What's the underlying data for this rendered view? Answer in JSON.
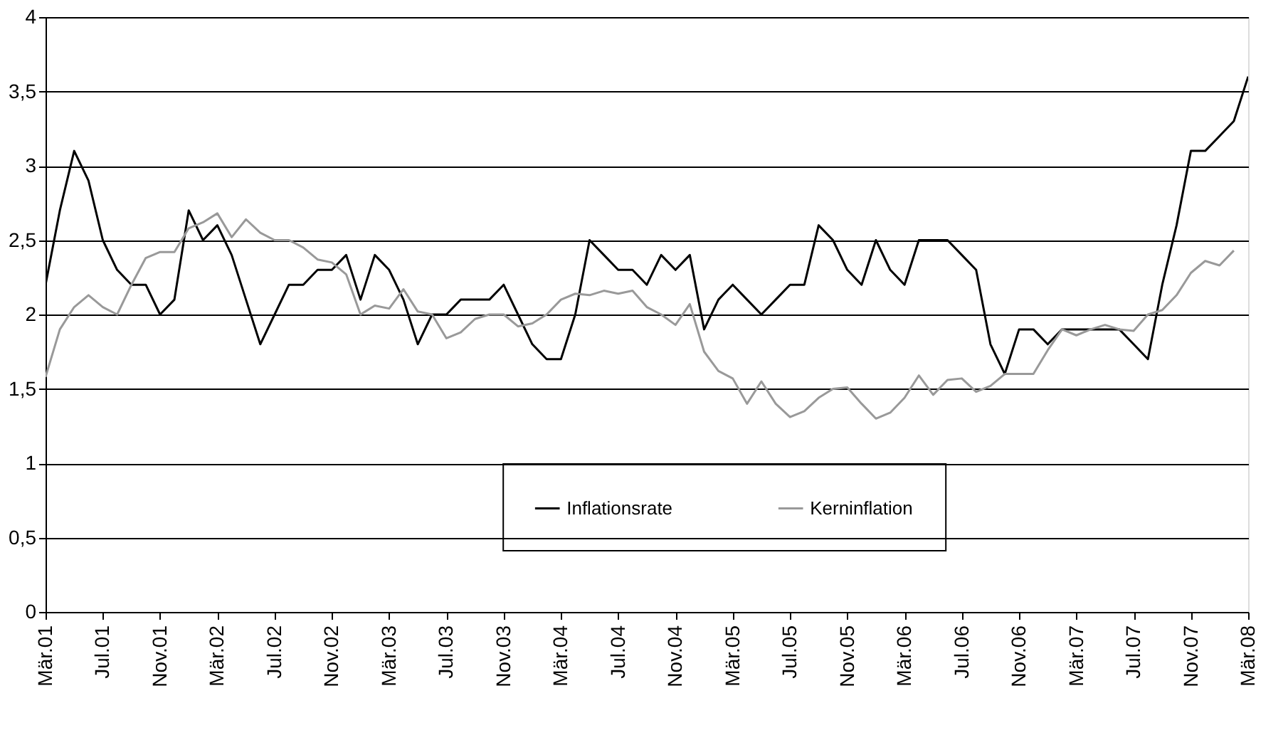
{
  "chart_data": {
    "type": "line",
    "categories": [
      "Mär.01",
      null,
      null,
      null,
      "Jul.01",
      null,
      null,
      null,
      "Nov.01",
      null,
      null,
      null,
      "Mär.02",
      null,
      null,
      null,
      "Jul.02",
      null,
      null,
      null,
      "Nov.02",
      null,
      null,
      null,
      "Mär.03",
      null,
      null,
      null,
      "Jul.03",
      null,
      null,
      null,
      "Nov.03",
      null,
      null,
      null,
      "Mär.04",
      null,
      null,
      null,
      "Jul.04",
      null,
      null,
      null,
      "Nov.04",
      null,
      null,
      null,
      "Mär.05",
      null,
      null,
      null,
      "Jul.05",
      null,
      null,
      null,
      "Nov.05",
      null,
      null,
      null,
      "Mär.06",
      null,
      null,
      null,
      "Jul.06",
      null,
      null,
      null,
      "Nov.06",
      null,
      null,
      null,
      "Mär.07",
      null,
      null,
      null,
      "Jul.07",
      null,
      null,
      null,
      "Nov.07",
      null,
      null,
      null,
      "Mär.08"
    ],
    "series": [
      {
        "name": "Inflationsrate",
        "color": "#000000",
        "values": [
          2.2,
          2.7,
          3.1,
          2.9,
          2.5,
          2.3,
          2.2,
          2.2,
          2.0,
          2.1,
          2.7,
          2.5,
          2.6,
          2.4,
          2.1,
          1.8,
          2.0,
          2.2,
          2.2,
          2.3,
          2.3,
          2.4,
          2.1,
          2.4,
          2.3,
          2.1,
          1.8,
          2.0,
          2.0,
          2.1,
          2.1,
          2.1,
          2.2,
          2.0,
          1.8,
          1.7,
          1.7,
          2.0,
          2.5,
          2.4,
          2.3,
          2.3,
          2.2,
          2.4,
          2.3,
          2.4,
          1.9,
          2.1,
          2.2,
          2.1,
          2.0,
          2.1,
          2.2,
          2.2,
          2.6,
          2.5,
          2.3,
          2.2,
          2.5,
          2.3,
          2.2,
          2.5,
          2.5,
          2.5,
          2.4,
          2.3,
          1.8,
          1.6,
          1.9,
          1.9,
          1.8,
          1.9,
          1.9,
          1.9,
          1.9,
          1.9,
          1.8,
          1.7,
          2.2,
          2.6,
          3.1,
          3.1,
          3.2,
          3.3,
          3.6
        ]
      },
      {
        "name": "Kerninflation",
        "color": "#999999",
        "values": [
          1.58,
          1.9,
          2.05,
          2.13,
          2.05,
          2.0,
          2.2,
          2.38,
          2.42,
          2.42,
          2.58,
          2.62,
          2.68,
          2.52,
          2.64,
          2.55,
          2.5,
          2.5,
          2.45,
          2.37,
          2.35,
          2.27,
          2.0,
          2.06,
          2.04,
          2.17,
          2.02,
          2.0,
          1.84,
          1.88,
          1.97,
          2.0,
          2.0,
          1.92,
          1.94,
          2.0,
          2.1,
          2.14,
          2.13,
          2.16,
          2.14,
          2.16,
          2.05,
          2.0,
          1.93,
          2.07,
          1.75,
          1.62,
          1.57,
          1.4,
          1.55,
          1.4,
          1.31,
          1.35,
          1.44,
          1.5,
          1.51,
          1.4,
          1.3,
          1.34,
          1.44,
          1.59,
          1.46,
          1.56,
          1.57,
          1.48,
          1.52,
          1.6,
          1.6,
          1.6,
          1.76,
          1.9,
          1.86,
          1.9,
          1.93,
          1.9,
          1.89,
          2.0,
          2.03,
          2.13,
          2.28,
          2.36,
          2.33,
          2.43,
          null
        ]
      }
    ],
    "ylim": [
      0,
      4
    ],
    "yticks": [
      0,
      {
        "value": 0.5,
        "label": "0,5"
      },
      1,
      {
        "value": 1.5,
        "label": "1,5"
      },
      2,
      {
        "value": 2.5,
        "label": "2,5"
      },
      3,
      {
        "value": 3.5,
        "label": "3,5"
      },
      4
    ],
    "grid": "y",
    "legend": "bottom",
    "marker": "none",
    "line_style": "solid"
  }
}
